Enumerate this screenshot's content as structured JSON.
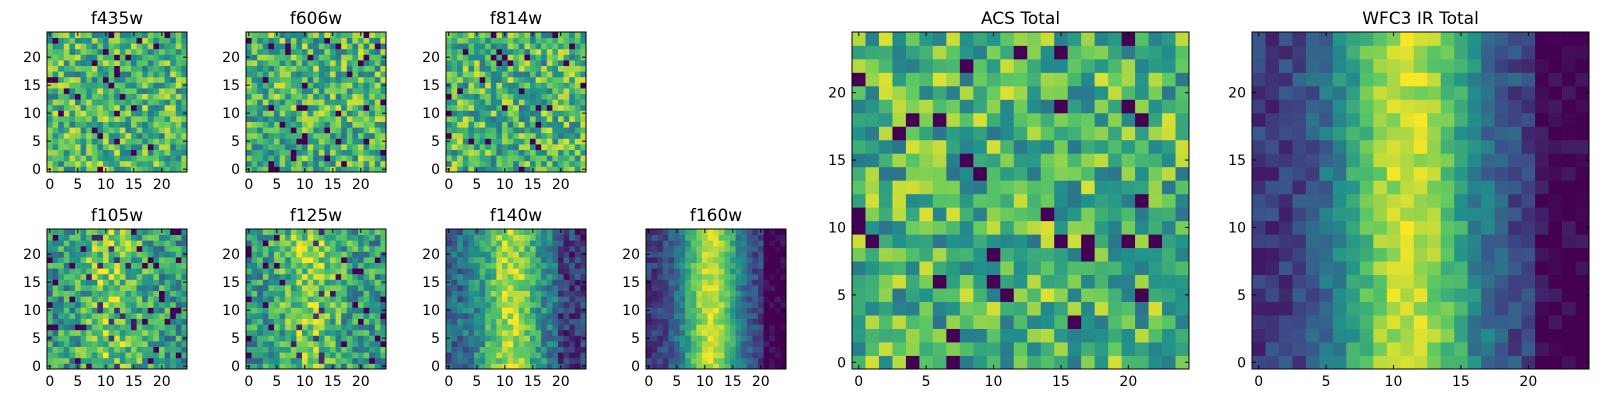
{
  "figure": {
    "colormap": "viridis",
    "colormap_stops": [
      "#440154",
      "#3b528b",
      "#21918c",
      "#5ec962",
      "#fde725"
    ]
  },
  "chart_data": [
    {
      "type": "heatmap",
      "id": "f435w",
      "title": "f435w",
      "grid_size": 25,
      "pattern": "noise",
      "xticks": [
        "0",
        "5",
        "10",
        "15",
        "20"
      ],
      "yticks": [
        "0",
        "5",
        "10",
        "15",
        "20"
      ],
      "seed": 11
    },
    {
      "type": "heatmap",
      "id": "f606w",
      "title": "f606w",
      "grid_size": 25,
      "pattern": "noise",
      "xticks": [
        "0",
        "5",
        "10",
        "15",
        "20"
      ],
      "yticks": [
        "0",
        "5",
        "10",
        "15",
        "20"
      ],
      "seed": 23
    },
    {
      "type": "heatmap",
      "id": "f814w",
      "title": "f814w",
      "grid_size": 25,
      "pattern": "noise",
      "xticks": [
        "0",
        "5",
        "10",
        "15",
        "20"
      ],
      "yticks": [
        "0",
        "5",
        "10",
        "15",
        "20"
      ],
      "seed": 37
    },
    {
      "type": "heatmap",
      "id": "f105w",
      "title": "f105w",
      "grid_size": 25,
      "pattern": "weak-column",
      "xticks": [
        "0",
        "5",
        "10",
        "15",
        "20"
      ],
      "yticks": [
        "0",
        "5",
        "10",
        "15",
        "20"
      ],
      "seed": 41
    },
    {
      "type": "heatmap",
      "id": "f125w",
      "title": "f125w",
      "grid_size": 25,
      "pattern": "weak-column",
      "xticks": [
        "0",
        "5",
        "10",
        "15",
        "20"
      ],
      "yticks": [
        "0",
        "5",
        "10",
        "15",
        "20"
      ],
      "seed": 53
    },
    {
      "type": "heatmap",
      "id": "f140w",
      "title": "f140w",
      "grid_size": 25,
      "pattern": "column",
      "xticks": [
        "0",
        "5",
        "10",
        "15",
        "20"
      ],
      "yticks": [
        "0",
        "5",
        "10",
        "15",
        "20"
      ],
      "seed": 67
    },
    {
      "type": "heatmap",
      "id": "f160w",
      "title": "f160w",
      "grid_size": 25,
      "pattern": "strong-column",
      "xticks": [
        "0",
        "5",
        "10",
        "15",
        "20"
      ],
      "yticks": [
        "0",
        "5",
        "10",
        "15",
        "20"
      ],
      "seed": 71
    },
    {
      "type": "heatmap",
      "id": "acs_total",
      "title": "ACS Total",
      "grid_size": 25,
      "pattern": "noise",
      "xticks": [
        "0",
        "5",
        "10",
        "15",
        "20"
      ],
      "yticks": [
        "0",
        "5",
        "10",
        "15",
        "20"
      ],
      "seed": 83
    },
    {
      "type": "heatmap",
      "id": "wfc3_ir_total",
      "title": "WFC3 IR Total",
      "grid_size": 25,
      "pattern": "strong-column",
      "xticks": [
        "0",
        "5",
        "10",
        "15",
        "20"
      ],
      "yticks": [
        "0",
        "5",
        "10",
        "15",
        "20"
      ],
      "seed": 97
    }
  ]
}
